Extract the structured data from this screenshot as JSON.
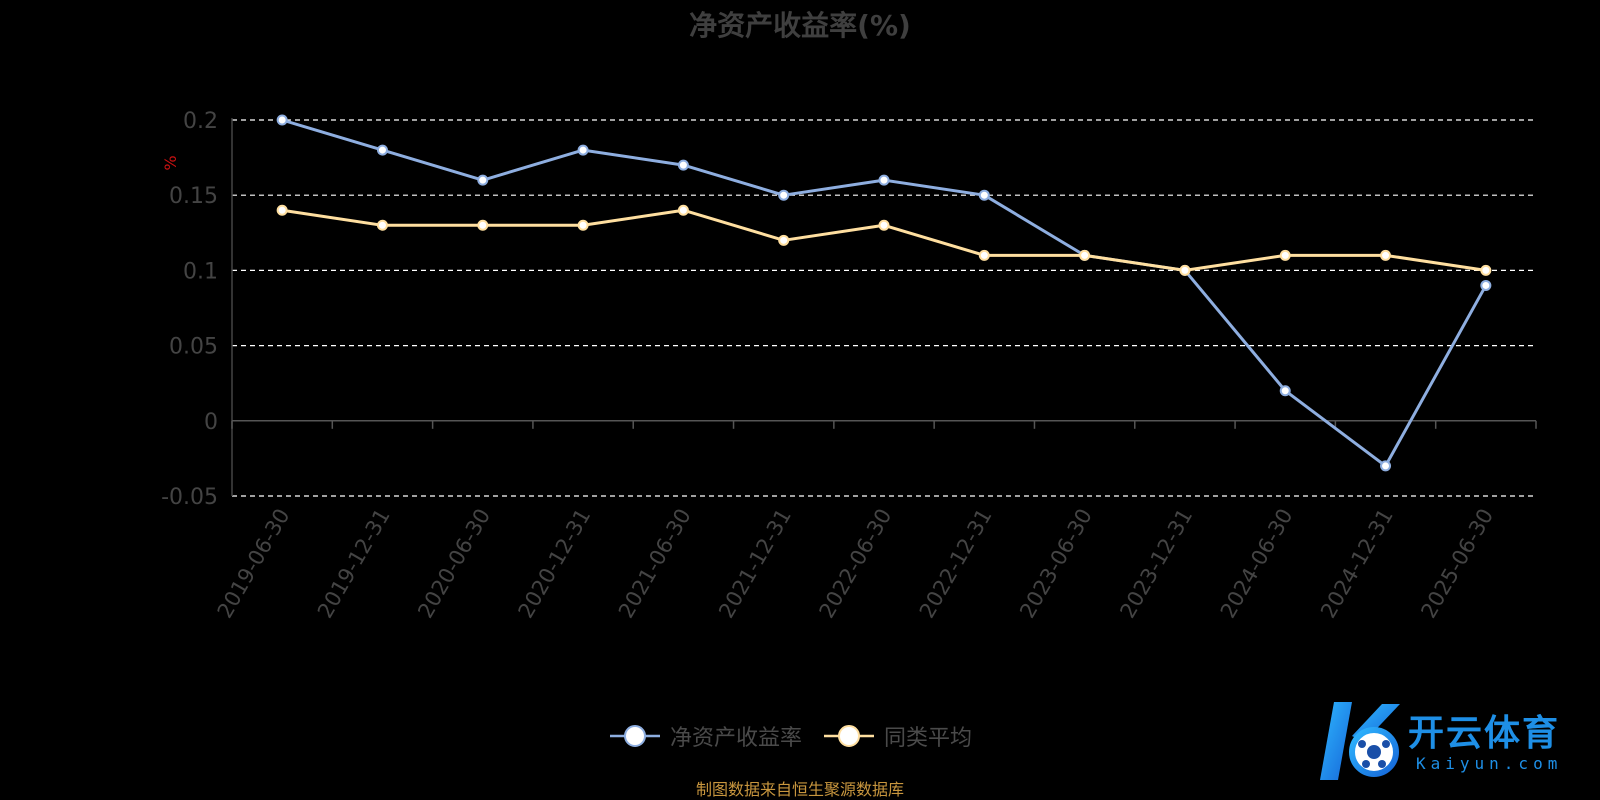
{
  "chart_data": {
    "type": "line",
    "title": "净资产收益率(%)",
    "ylabel": "%",
    "xlabel": "",
    "categories": [
      "2019-06-30",
      "2019-12-31",
      "2020-06-30",
      "2020-12-31",
      "2021-06-30",
      "2021-12-31",
      "2022-06-30",
      "2022-12-31",
      "2023-06-30",
      "2023-12-31",
      "2024-06-30",
      "2024-12-31",
      "2025-06-30"
    ],
    "yticks": [
      "0.2",
      "0.15",
      "0.1",
      "0.05",
      "0",
      "-0.05"
    ],
    "ylim": [
      -0.05,
      0.2
    ],
    "grid": true,
    "legend_position": "bottom",
    "series": [
      {
        "name": "净资产收益率",
        "color": "#8eaee0",
        "values": [
          0.2,
          0.18,
          0.16,
          0.18,
          0.17,
          0.15,
          0.16,
          0.15,
          0.11,
          0.1,
          0.02,
          -0.03,
          0.09
        ]
      },
      {
        "name": "同类平均",
        "color": "#ffdfa0",
        "values": [
          0.14,
          0.13,
          0.13,
          0.13,
          0.14,
          0.12,
          0.13,
          0.11,
          0.11,
          0.1,
          0.11,
          0.11,
          0.1
        ]
      }
    ]
  },
  "footer": "制图数据来自恒生聚源数据库",
  "logo": {
    "text": "开云体育",
    "sub": "Kaiyun.com"
  }
}
